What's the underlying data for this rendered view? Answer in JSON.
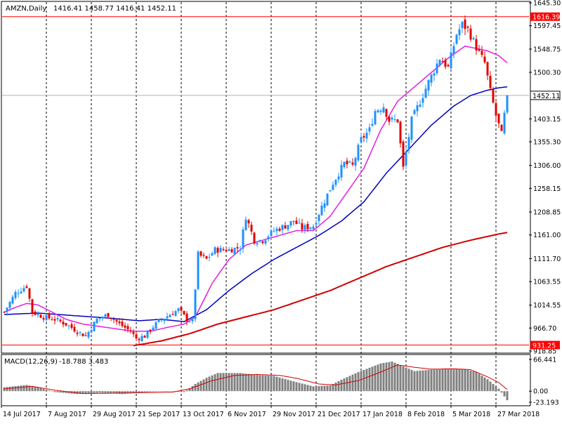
{
  "header": {
    "symbol": "AMZN,Daily",
    "ohlc": "1416.41 1458.77 1416.41 1452.11"
  },
  "macd_header": {
    "label": "MACD(12,26,9)",
    "values": "-18.788 3.483"
  },
  "price_axis": {
    "ticks": [
      "1645.30",
      "1597.45",
      "1548.75",
      "1500.30",
      "1403.15",
      "1355.30",
      "1306.00",
      "1258.15",
      "1208.85",
      "1161.00",
      "1111.70",
      "1063.55",
      "1014.55",
      "966.70",
      "918.85"
    ],
    "tick_values": [
      1645.3,
      1597.45,
      1548.75,
      1500.3,
      1403.15,
      1355.3,
      1306.0,
      1258.15,
      1208.85,
      1161.0,
      1111.7,
      1063.55,
      1014.55,
      966.7,
      918.85
    ]
  },
  "current_price": {
    "label": "1452.11",
    "value": 1452.11
  },
  "levels": [
    {
      "label": "1616.39",
      "value": 1616.39,
      "color": "#ff0000"
    },
    {
      "label": "931.25",
      "value": 931.25,
      "color": "#ff0000"
    }
  ],
  "macd_axis": {
    "ticks": [
      "66.441",
      "0.00",
      "-23.193"
    ],
    "tick_values": [
      66.441,
      0,
      -23.193
    ]
  },
  "time_axis": {
    "labels": [
      "14 Jul 2017",
      "7 Aug 2017",
      "29 Aug 2017",
      "21 Sep 2017",
      "13 Oct 2017",
      "6 Nov 2017",
      "29 Nov 2017",
      "21 Dec 2017",
      "17 Jan 2018",
      "8 Feb 2018",
      "5 Mar 2018",
      "27 Mar 2018"
    ],
    "label_bars": [
      0,
      16,
      32,
      48,
      64,
      80,
      96,
      112,
      128,
      144,
      160,
      176
    ]
  },
  "colors": {
    "up": "#1e90ff",
    "down": "#e00000",
    "ma_short": "#e020e0",
    "ma_mid": "#0000c0",
    "ma_long": "#d00000",
    "macd_hist": "#808080",
    "macd_signal": "#d00000",
    "level": "#ff0000",
    "grid": "#000000"
  },
  "chart_data": {
    "type": "candlestick",
    "ylim": [
      918.85,
      1645.3
    ],
    "price_path": [
      [
        0,
        1000
      ],
      [
        4,
        1040
      ],
      [
        8,
        1055
      ],
      [
        10,
        1000
      ],
      [
        14,
        990
      ],
      [
        18,
        985
      ],
      [
        22,
        975
      ],
      [
        26,
        960
      ],
      [
        29,
        950
      ],
      [
        33,
        985
      ],
      [
        37,
        995
      ],
      [
        41,
        975
      ],
      [
        45,
        960
      ],
      [
        47,
        945
      ],
      [
        50,
        950
      ],
      [
        53,
        970
      ],
      [
        56,
        985
      ],
      [
        59,
        995
      ],
      [
        62,
        1005
      ],
      [
        65,
        985
      ],
      [
        67,
        980
      ],
      [
        69,
        1120
      ],
      [
        72,
        1110
      ],
      [
        75,
        1130
      ],
      [
        80,
        1130
      ],
      [
        84,
        1135
      ],
      [
        86,
        1200
      ],
      [
        89,
        1150
      ],
      [
        92,
        1150
      ],
      [
        96,
        1170
      ],
      [
        100,
        1180
      ],
      [
        103,
        1190
      ],
      [
        106,
        1175
      ],
      [
        110,
        1180
      ],
      [
        113,
        1220
      ],
      [
        117,
        1270
      ],
      [
        121,
        1310
      ],
      [
        124,
        1305
      ],
      [
        127,
        1360
      ],
      [
        130,
        1380
      ],
      [
        132,
        1420
      ],
      [
        135,
        1430
      ],
      [
        137,
        1400
      ],
      [
        140,
        1400
      ],
      [
        142,
        1300
      ],
      [
        145,
        1400
      ],
      [
        148,
        1440
      ],
      [
        151,
        1480
      ],
      [
        155,
        1530
      ],
      [
        158,
        1510
      ],
      [
        161,
        1580
      ],
      [
        163,
        1600
      ],
      [
        165,
        1590
      ],
      [
        167,
        1565
      ],
      [
        169,
        1540
      ],
      [
        171,
        1520
      ],
      [
        173,
        1460
      ],
      [
        175,
        1410
      ],
      [
        177,
        1370
      ],
      [
        179,
        1452
      ]
    ],
    "ma_short_path": [
      [
        0,
        1000
      ],
      [
        4,
        1010
      ],
      [
        8,
        1018
      ],
      [
        12,
        1015
      ],
      [
        17,
        1000
      ],
      [
        22,
        985
      ],
      [
        28,
        975
      ],
      [
        34,
        970
      ],
      [
        40,
        965
      ],
      [
        46,
        960
      ],
      [
        52,
        960
      ],
      [
        58,
        968
      ],
      [
        64,
        975
      ],
      [
        68,
        990
      ],
      [
        74,
        1060
      ],
      [
        80,
        1110
      ],
      [
        86,
        1140
      ],
      [
        92,
        1150
      ],
      [
        98,
        1160
      ],
      [
        104,
        1170
      ],
      [
        110,
        1170
      ],
      [
        116,
        1200
      ],
      [
        122,
        1250
      ],
      [
        128,
        1300
      ],
      [
        134,
        1380
      ],
      [
        140,
        1440
      ],
      [
        146,
        1470
      ],
      [
        152,
        1500
      ],
      [
        158,
        1530
      ],
      [
        164,
        1555
      ],
      [
        168,
        1550
      ],
      [
        172,
        1545
      ],
      [
        176,
        1535
      ],
      [
        179,
        1520
      ]
    ],
    "ma_mid_path": [
      [
        0,
        995
      ],
      [
        12,
        998
      ],
      [
        24,
        993
      ],
      [
        36,
        988
      ],
      [
        48,
        982
      ],
      [
        56,
        985
      ],
      [
        64,
        980
      ],
      [
        72,
        1005
      ],
      [
        80,
        1045
      ],
      [
        88,
        1080
      ],
      [
        96,
        1110
      ],
      [
        104,
        1135
      ],
      [
        112,
        1160
      ],
      [
        120,
        1190
      ],
      [
        128,
        1230
      ],
      [
        136,
        1290
      ],
      [
        144,
        1340
      ],
      [
        152,
        1390
      ],
      [
        160,
        1430
      ],
      [
        166,
        1452
      ],
      [
        172,
        1463
      ],
      [
        176,
        1468
      ],
      [
        179,
        1470
      ]
    ],
    "ma_long_path": [
      [
        46,
        930
      ],
      [
        56,
        940
      ],
      [
        66,
        955
      ],
      [
        76,
        975
      ],
      [
        86,
        990
      ],
      [
        96,
        1005
      ],
      [
        106,
        1025
      ],
      [
        116,
        1045
      ],
      [
        126,
        1070
      ],
      [
        136,
        1095
      ],
      [
        146,
        1115
      ],
      [
        156,
        1135
      ],
      [
        166,
        1150
      ],
      [
        176,
        1163
      ],
      [
        179,
        1166
      ]
    ],
    "macd_path": [
      [
        0,
        8
      ],
      [
        8,
        13
      ],
      [
        12,
        8
      ],
      [
        18,
        -2
      ],
      [
        26,
        -6
      ],
      [
        34,
        -3
      ],
      [
        42,
        -6
      ],
      [
        50,
        -2
      ],
      [
        58,
        0
      ],
      [
        64,
        -2
      ],
      [
        68,
        15
      ],
      [
        72,
        28
      ],
      [
        76,
        38
      ],
      [
        84,
        38
      ],
      [
        90,
        34
      ],
      [
        96,
        32
      ],
      [
        102,
        22
      ],
      [
        110,
        10
      ],
      [
        116,
        12
      ],
      [
        120,
        24
      ],
      [
        126,
        40
      ],
      [
        134,
        58
      ],
      [
        138,
        62
      ],
      [
        142,
        52
      ],
      [
        146,
        42
      ],
      [
        152,
        45
      ],
      [
        158,
        46
      ],
      [
        164,
        46
      ],
      [
        168,
        40
      ],
      [
        172,
        25
      ],
      [
        176,
        5
      ],
      [
        179,
        -19
      ]
    ],
    "signal_path": [
      [
        0,
        5
      ],
      [
        10,
        10
      ],
      [
        18,
        2
      ],
      [
        28,
        -5
      ],
      [
        40,
        -4
      ],
      [
        52,
        -3
      ],
      [
        60,
        -2
      ],
      [
        66,
        5
      ],
      [
        74,
        22
      ],
      [
        82,
        33
      ],
      [
        90,
        35
      ],
      [
        98,
        33
      ],
      [
        104,
        27
      ],
      [
        112,
        15
      ],
      [
        118,
        13
      ],
      [
        126,
        22
      ],
      [
        134,
        40
      ],
      [
        140,
        55
      ],
      [
        146,
        50
      ],
      [
        152,
        46
      ],
      [
        160,
        47
      ],
      [
        166,
        45
      ],
      [
        172,
        30
      ],
      [
        176,
        18
      ],
      [
        179,
        3.483
      ]
    ],
    "macd_ylim": [
      -23.193,
      66.441
    ]
  }
}
